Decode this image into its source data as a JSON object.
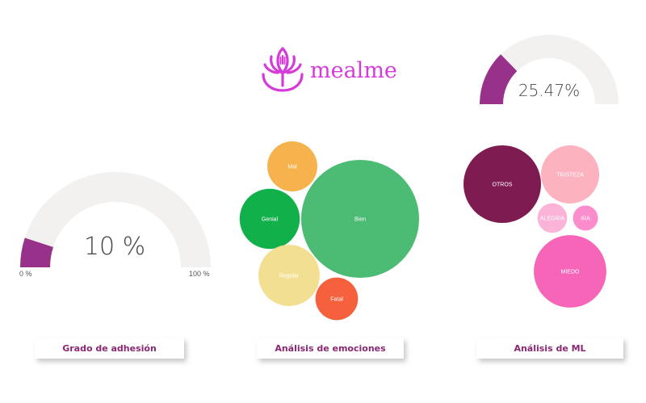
{
  "colors": {
    "gauge_fill": "#98318a",
    "gauge_track": "#f2f1f0",
    "brand": "#d63bd9",
    "card_text": "#8a2773"
  },
  "logo": {
    "text": "mealme",
    "icon": "lotus-fork-icon"
  },
  "gauges": {
    "adhesion": {
      "value_label": "10 %",
      "value": 10,
      "min_label": "0 %",
      "max_label": "100 %",
      "min": 0,
      "max": 100
    },
    "ml": {
      "value_label": "25.47%",
      "value": 25.47,
      "min": 0,
      "max": 100
    }
  },
  "cards": {
    "adhesion": "Grado de adhesión",
    "emotions": "Análisis de emociones",
    "ml": "Análisis de ML"
  },
  "chart_data": [
    {
      "type": "gauge",
      "value": 10,
      "min": 0,
      "max": 100,
      "value_label": "10 %",
      "title": "Grado de adhesión"
    },
    {
      "type": "bubble",
      "title": "Análisis de emociones",
      "items": [
        {
          "label": "Bien",
          "value": 100,
          "color": "#4cbb74"
        },
        {
          "label": "Genial",
          "value": 26,
          "color": "#12b04a"
        },
        {
          "label": "Mal",
          "value": 18,
          "color": "#f6b24c"
        },
        {
          "label": "Regular",
          "value": 27,
          "color": "#f3df92"
        },
        {
          "label": "Fatal",
          "value": 13,
          "color": "#f5613c"
        }
      ]
    },
    {
      "type": "bubble",
      "title": "Análisis de ML",
      "items": [
        {
          "label": "OTROS",
          "value": 48,
          "color": "#7e1c52"
        },
        {
          "label": "TRISTEZA",
          "value": 27,
          "color": "#fcb3bf"
        },
        {
          "label": "ALEGRIA",
          "value": 7,
          "color": "#fbb3d7"
        },
        {
          "label": "IRA",
          "value": 5,
          "color": "#fc8dcd"
        },
        {
          "label": "MIEDO",
          "value": 42,
          "color": "#f765b8"
        }
      ]
    },
    {
      "type": "gauge",
      "value": 25.47,
      "min": 0,
      "max": 100,
      "value_label": "25.47%",
      "title": ""
    }
  ]
}
